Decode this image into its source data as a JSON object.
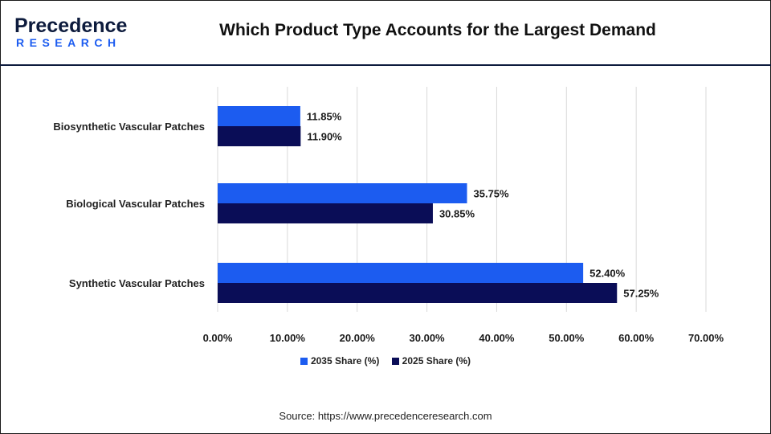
{
  "header": {
    "logo_text_top": "Precedence",
    "logo_text_bottom": "RESEARCH",
    "title": "Which Product Type Accounts for the Largest Demand"
  },
  "colors": {
    "series_2035": "#1c5cf0",
    "series_2025": "#0a0d57",
    "logo_blue": "#1c5cf0",
    "logo_navy": "#0d1b3d",
    "grid": "#d9d9d9"
  },
  "chart_data": {
    "type": "bar",
    "orientation": "horizontal",
    "categories": [
      "Biosynthetic Vascular Patches",
      "Biological Vascular Patches",
      "Synthetic Vascular Patches"
    ],
    "series": [
      {
        "name": "2035 Share (%)",
        "values": [
          11.85,
          35.75,
          52.4
        ],
        "labels": [
          "11.85%",
          "35.75%",
          "52.40%"
        ]
      },
      {
        "name": "2025 Share (%)",
        "values": [
          11.9,
          30.85,
          57.25
        ],
        "labels": [
          "11.90%",
          "30.85%",
          "57.25%"
        ]
      }
    ],
    "xlim": [
      0,
      70
    ],
    "xticks": [
      0,
      10,
      20,
      30,
      40,
      50,
      60,
      70
    ],
    "xtick_labels": [
      "0.00%",
      "10.00%",
      "20.00%",
      "30.00%",
      "40.00%",
      "50.00%",
      "60.00%",
      "70.00%"
    ],
    "grid": true,
    "legend_position": "bottom"
  },
  "legend": {
    "item_2035": "2035 Share (%)",
    "item_2025": "2025 Share (%)"
  },
  "footer": {
    "source": "Source: https://www.precedenceresearch.com"
  }
}
